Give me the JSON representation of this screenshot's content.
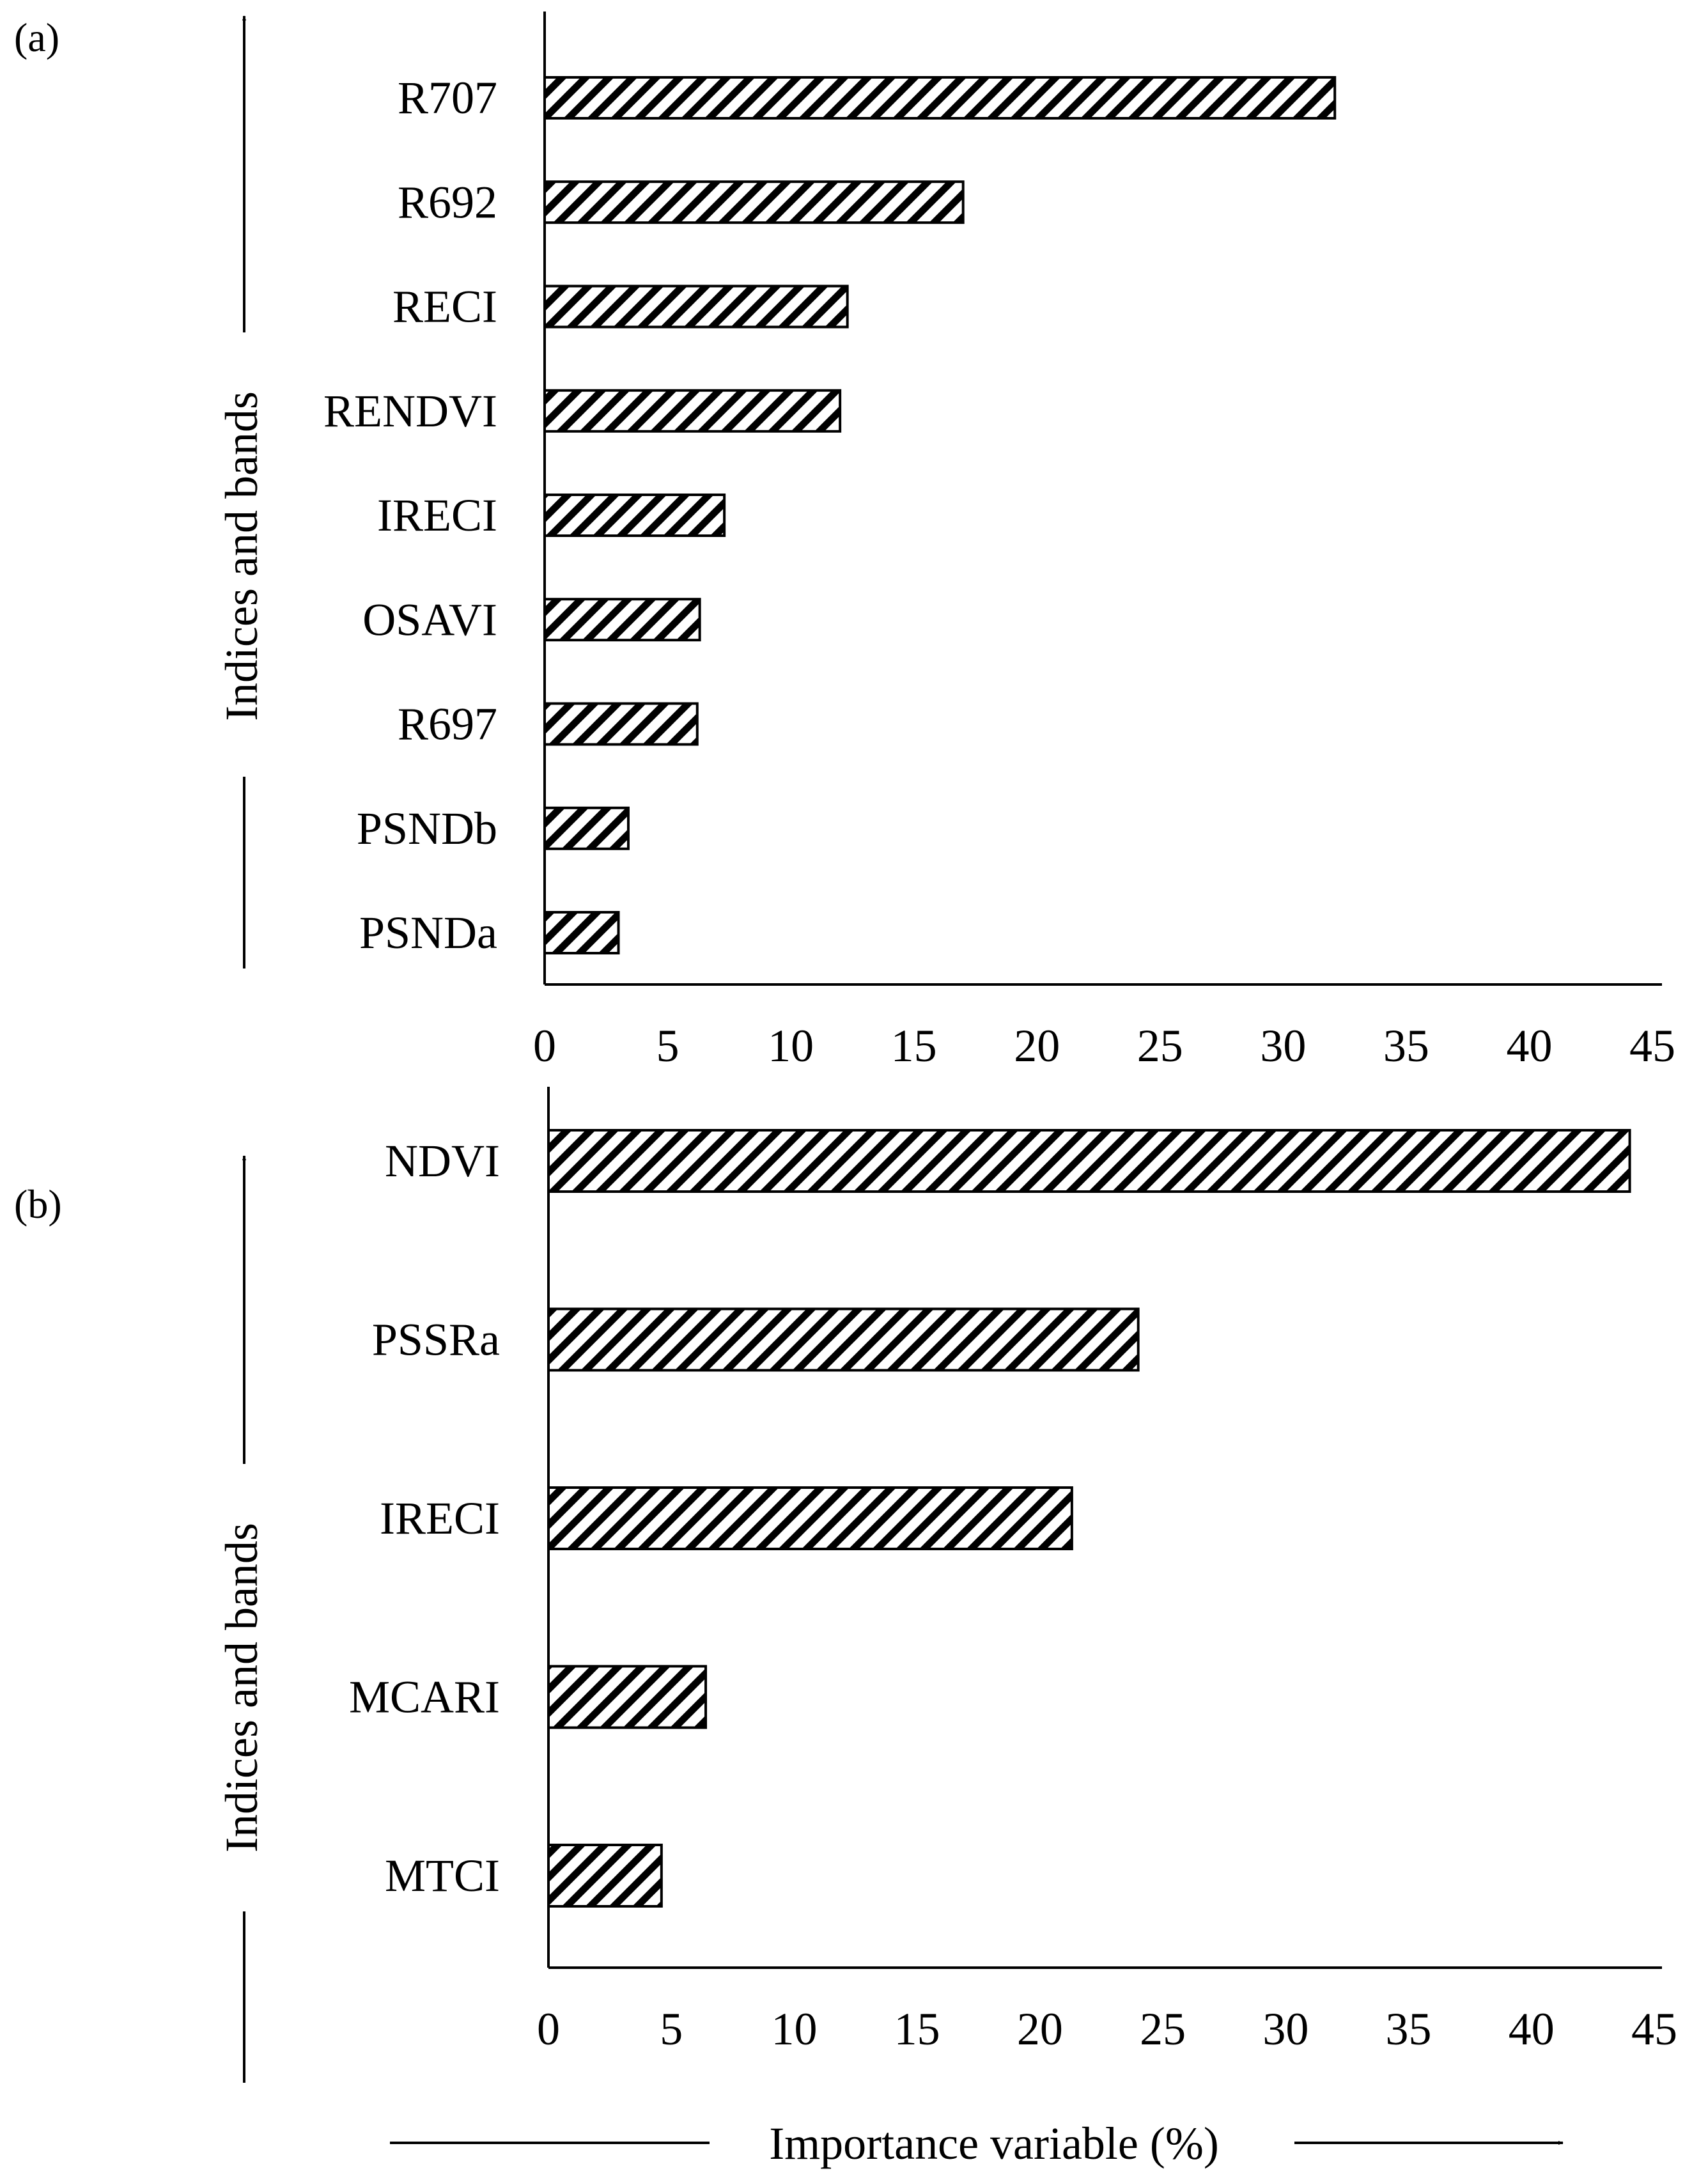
{
  "chart_data": [
    {
      "type": "bar",
      "orientation": "horizontal",
      "panel_label": "(a)",
      "categories": [
        "R707",
        "R692",
        "RECI",
        "RENDVI",
        "IRECI",
        "OSAVI",
        "R697",
        "PSNDb",
        "PSNDa"
      ],
      "values": [
        32.1,
        17.0,
        12.3,
        12.0,
        7.3,
        6.3,
        6.2,
        3.4,
        3.0
      ],
      "xlim": [
        0,
        45
      ],
      "xticks": [
        "0",
        "5",
        "10",
        "15",
        "20",
        "25",
        "30",
        "35",
        "40",
        "45"
      ],
      "ylabel": "Indices  and bands",
      "pattern": "diagonal-hatch",
      "grid": false
    },
    {
      "type": "bar",
      "orientation": "horizontal",
      "panel_label": "(b)",
      "categories": [
        "NDVI",
        "PSSRa",
        "IRECI",
        "MCARI",
        "MTCI"
      ],
      "values": [
        44.0,
        24.0,
        21.3,
        6.4,
        4.6
      ],
      "xlim": [
        0,
        45
      ],
      "xticks": [
        "0",
        "5",
        "10",
        "15",
        "20",
        "25",
        "30",
        "35",
        "40",
        "45"
      ],
      "ylabel": "Indices  and bands",
      "pattern": "diagonal-hatch",
      "grid": false
    }
  ],
  "xlabel": "Importance  variable  (%)"
}
